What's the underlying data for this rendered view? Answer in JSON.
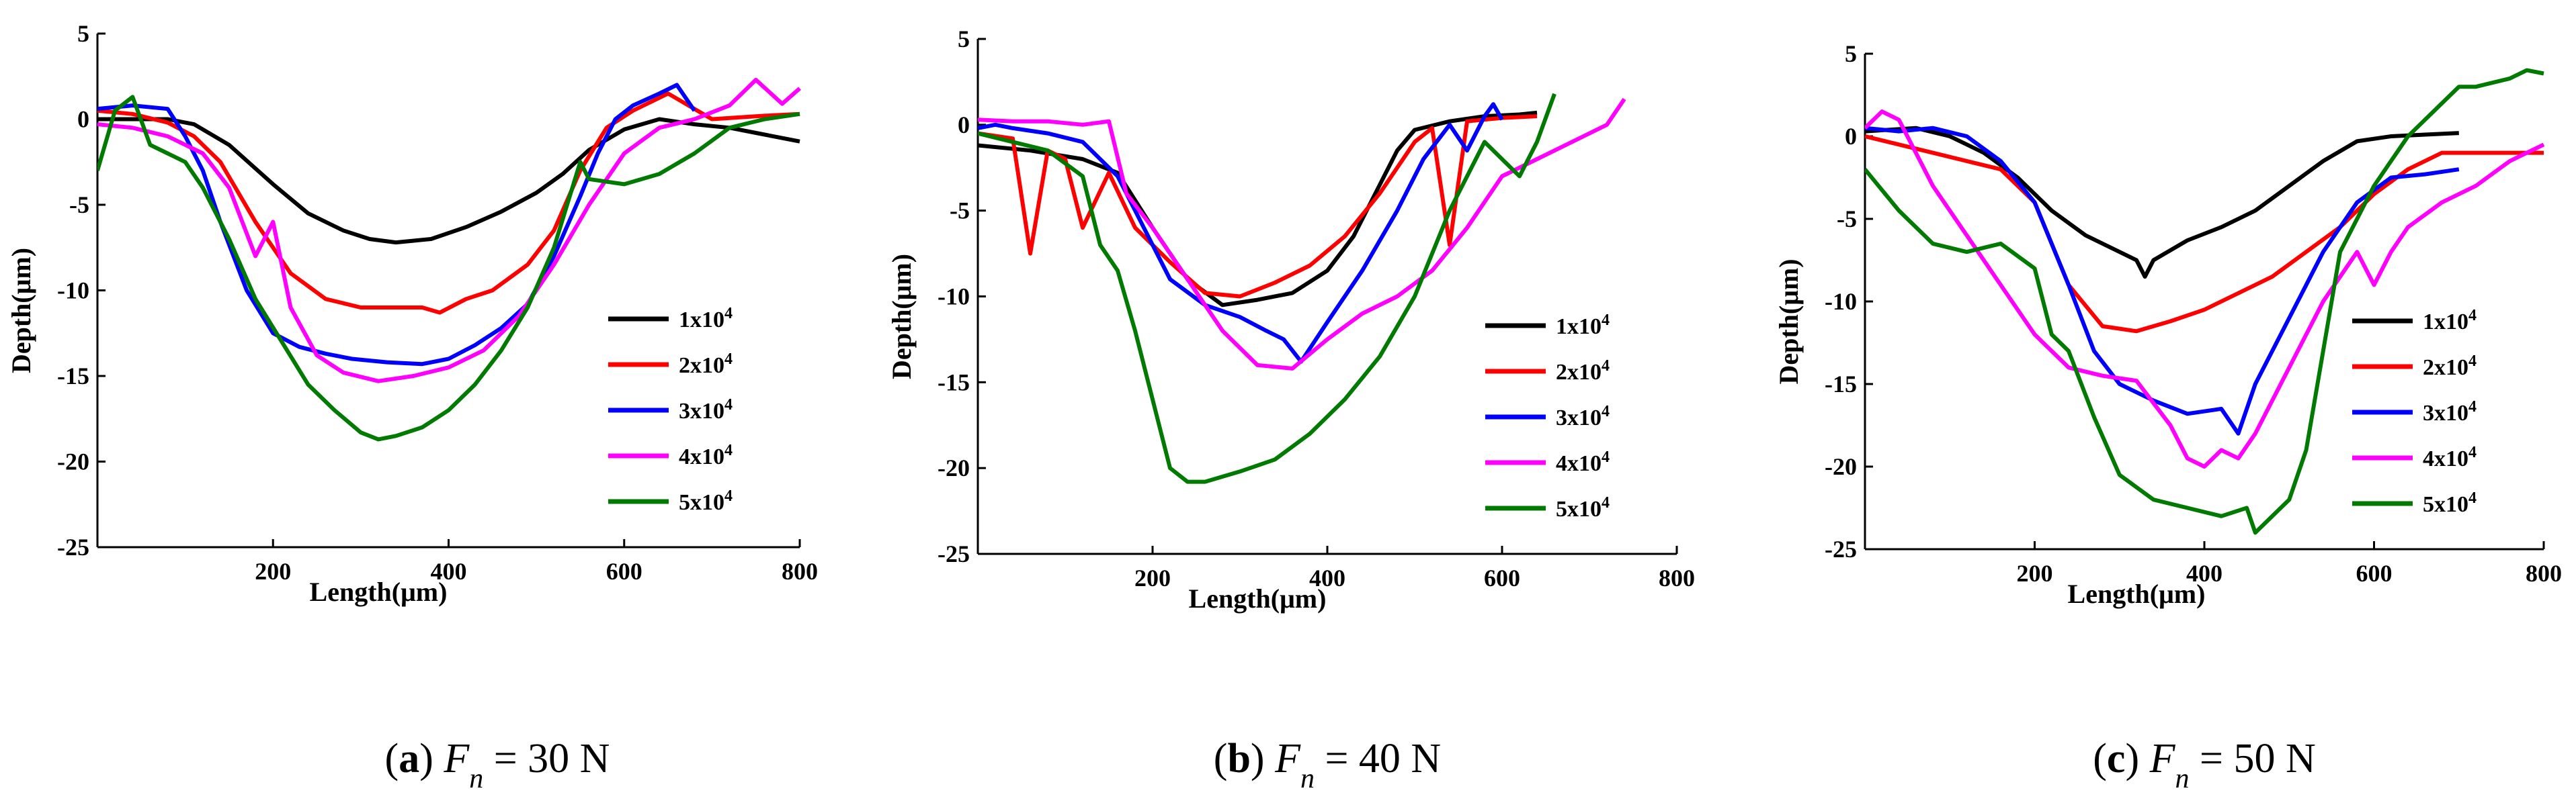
{
  "colors": {
    "1x10^4": "#000000",
    "2x10^4": "#ff0000",
    "3x10^4": "#0000ff",
    "4x10^4": "#ff00ff",
    "5x10^4": "#007a00"
  },
  "legend_entries": [
    "1x10^4",
    "2x10^4",
    "3x10^4",
    "4x10^4",
    "5x10^4"
  ],
  "chart_data": [
    {
      "type": "line",
      "caption": {
        "letter": "a",
        "force_symbol": "F",
        "force_sub": "n",
        "value": "= 30 N"
      },
      "xlabel": "Length(μm)",
      "ylabel": "Depth(μm)",
      "xlim": [
        0,
        800
      ],
      "ylim": [
        -25,
        5
      ],
      "xticks": [
        200,
        400,
        600,
        800
      ],
      "yticks": [
        5,
        0,
        -5,
        -10,
        -15,
        -20,
        -25
      ],
      "legend": "right",
      "grid": false,
      "series": [
        {
          "name": "1x10^4",
          "x": [
            0,
            80,
            110,
            150,
            200,
            240,
            280,
            310,
            340,
            380,
            420,
            460,
            500,
            530,
            560,
            600,
            640,
            680,
            720,
            760,
            800
          ],
          "y": [
            0,
            0,
            -0.3,
            -1.5,
            -3.8,
            -5.5,
            -6.5,
            -7,
            -7.2,
            -7,
            -6.3,
            -5.4,
            -4.3,
            -3.2,
            -1.8,
            -0.6,
            0,
            -0.3,
            -0.5,
            -0.9,
            -1.3
          ]
        },
        {
          "name": "2x10^4",
          "x": [
            0,
            40,
            80,
            110,
            140,
            180,
            220,
            260,
            300,
            340,
            370,
            390,
            420,
            450,
            490,
            520,
            550,
            580,
            610,
            650,
            700,
            760,
            800
          ],
          "y": [
            0.5,
            0.3,
            -0.2,
            -1,
            -2.5,
            -6,
            -9,
            -10.5,
            -11,
            -11,
            -11,
            -11.3,
            -10.5,
            -10,
            -8.5,
            -6.5,
            -3,
            -0.5,
            0.5,
            1.5,
            0,
            0.2,
            0.3
          ]
        },
        {
          "name": "3x10^4",
          "x": [
            0,
            40,
            80,
            100,
            120,
            140,
            170,
            200,
            230,
            260,
            290,
            330,
            370,
            400,
            430,
            460,
            490,
            520,
            550,
            570,
            590,
            610,
            640,
            660,
            680
          ],
          "y": [
            0.6,
            0.8,
            0.6,
            -1,
            -3,
            -6,
            -10,
            -12.5,
            -13.3,
            -13.7,
            -14,
            -14.2,
            -14.3,
            -14,
            -13.2,
            -12.2,
            -10.8,
            -8,
            -4.5,
            -2,
            0,
            0.8,
            1.5,
            2,
            0.5
          ]
        },
        {
          "name": "4x10^4",
          "x": [
            0,
            40,
            80,
            120,
            150,
            180,
            200,
            220,
            250,
            280,
            320,
            360,
            400,
            440,
            480,
            520,
            560,
            600,
            640,
            680,
            720,
            750,
            780,
            800
          ],
          "y": [
            -0.3,
            -0.5,
            -1,
            -2,
            -4,
            -8,
            -6,
            -11,
            -13.8,
            -14.8,
            -15.3,
            -15,
            -14.5,
            -13.5,
            -11.5,
            -8.5,
            -5,
            -2,
            -0.5,
            0,
            0.8,
            2.3,
            0.9,
            1.8
          ]
        },
        {
          "name": "5x10^4",
          "x": [
            0,
            20,
            40,
            60,
            80,
            100,
            120,
            150,
            180,
            210,
            240,
            270,
            300,
            320,
            340,
            370,
            400,
            430,
            460,
            490,
            520,
            550,
            560,
            600,
            640,
            680,
            720,
            760,
            800
          ],
          "y": [
            -3,
            0.5,
            1.3,
            -1.5,
            -2,
            -2.5,
            -4,
            -7,
            -10.5,
            -13,
            -15.5,
            -17,
            -18.3,
            -18.7,
            -18.5,
            -18,
            -17,
            -15.5,
            -13.5,
            -11,
            -7.5,
            -2.5,
            -3.5,
            -3.8,
            -3.2,
            -2,
            -0.5,
            0,
            0.3
          ]
        }
      ]
    },
    {
      "type": "line",
      "caption": {
        "letter": "b",
        "force_symbol": "F",
        "force_sub": "n",
        "value": "= 40 N"
      },
      "xlabel": "Length(μm)",
      "ylabel": "Depth(μm)",
      "xlim": [
        0,
        800
      ],
      "ylim": [
        -25,
        5
      ],
      "xticks": [
        200,
        400,
        600,
        800
      ],
      "yticks": [
        5,
        0,
        -5,
        -10,
        -15,
        -20,
        -25
      ],
      "legend": "right",
      "grid": false,
      "series": [
        {
          "name": "1x10^4",
          "x": [
            0,
            60,
            120,
            160,
            200,
            240,
            280,
            320,
            360,
            400,
            430,
            460,
            480,
            500,
            540,
            580,
            620,
            640
          ],
          "y": [
            -1.2,
            -1.5,
            -2,
            -2.8,
            -6,
            -9,
            -10.5,
            -10.2,
            -9.8,
            -8.5,
            -6.5,
            -3.5,
            -1.5,
            -0.3,
            0.2,
            0.5,
            0.6,
            0.7
          ]
        },
        {
          "name": "2x10^4",
          "x": [
            0,
            40,
            60,
            80,
            100,
            120,
            150,
            180,
            220,
            260,
            300,
            340,
            380,
            420,
            460,
            500,
            520,
            540,
            560,
            600,
            640
          ],
          "y": [
            -0.5,
            -0.8,
            -7.5,
            -1.5,
            -2,
            -6,
            -2.8,
            -6,
            -8,
            -9.8,
            -10,
            -9.2,
            -8.2,
            -6.5,
            -4,
            -1,
            -0.2,
            -7,
            0.2,
            0.4,
            0.5
          ]
        },
        {
          "name": "3x10^4",
          "x": [
            0,
            20,
            40,
            80,
            120,
            160,
            190,
            220,
            260,
            300,
            330,
            350,
            370,
            400,
            440,
            480,
            510,
            540,
            560,
            580,
            590,
            600
          ],
          "y": [
            -0.2,
            0,
            -0.2,
            -0.5,
            -1,
            -3,
            -6,
            -9,
            -10.5,
            -11.2,
            -12,
            -12.5,
            -13.8,
            -11.5,
            -8.5,
            -5,
            -2,
            0,
            -1.5,
            0.5,
            1.2,
            0.3
          ]
        },
        {
          "name": "4x10^4",
          "x": [
            0,
            40,
            80,
            120,
            150,
            170,
            200,
            240,
            280,
            320,
            360,
            400,
            440,
            480,
            520,
            560,
            600,
            640,
            680,
            720,
            740
          ],
          "y": [
            0.3,
            0.2,
            0.2,
            0,
            0.2,
            -4,
            -6,
            -9,
            -12,
            -14,
            -14.2,
            -12.5,
            -11,
            -10,
            -8.5,
            -6,
            -3,
            -2,
            -1,
            0,
            1.5
          ]
        },
        {
          "name": "5x10^4",
          "x": [
            0,
            40,
            80,
            120,
            140,
            160,
            180,
            200,
            220,
            240,
            260,
            300,
            340,
            380,
            420,
            460,
            500,
            540,
            560,
            580,
            600,
            620,
            640,
            660
          ],
          "y": [
            -0.5,
            -1,
            -1.5,
            -3,
            -7,
            -8.5,
            -12,
            -16,
            -20,
            -20.8,
            -20.8,
            -20.2,
            -19.5,
            -18,
            -16,
            -13.5,
            -10,
            -5,
            -3,
            -1,
            -2,
            -3,
            -1,
            1.8
          ]
        }
      ]
    },
    {
      "type": "line",
      "caption": {
        "letter": "c",
        "force_symbol": "F",
        "force_sub": "n",
        "value": "= 50 N"
      },
      "xlabel": "Length(μm)",
      "ylabel": "Depth(μm)",
      "xlim": [
        0,
        800
      ],
      "ylim": [
        -25,
        5
      ],
      "xticks": [
        200,
        400,
        600,
        800
      ],
      "yticks": [
        5,
        0,
        -5,
        -10,
        -15,
        -20,
        -25
      ],
      "legend": "right",
      "grid": false,
      "series": [
        {
          "name": "1x10^4",
          "x": [
            0,
            60,
            100,
            140,
            180,
            220,
            260,
            300,
            320,
            330,
            340,
            380,
            420,
            460,
            500,
            540,
            580,
            620,
            660,
            700
          ],
          "y": [
            0.3,
            0.5,
            0,
            -1,
            -2.5,
            -4.5,
            -6,
            -7,
            -7.5,
            -8.5,
            -7.5,
            -6.3,
            -5.5,
            -4.5,
            -3,
            -1.5,
            -0.3,
            0,
            0.1,
            0.2
          ]
        },
        {
          "name": "2x10^4",
          "x": [
            0,
            40,
            80,
            120,
            160,
            200,
            240,
            280,
            320,
            360,
            400,
            440,
            480,
            520,
            560,
            600,
            640,
            680,
            720,
            760,
            800
          ],
          "y": [
            0,
            -0.5,
            -1,
            -1.5,
            -2,
            -4,
            -9,
            -11.5,
            -11.8,
            -11.2,
            -10.5,
            -9.5,
            -8.5,
            -7,
            -5.5,
            -3.5,
            -2,
            -1,
            -1,
            -1,
            -1
          ]
        },
        {
          "name": "3x10^4",
          "x": [
            0,
            40,
            80,
            120,
            160,
            200,
            240,
            270,
            300,
            340,
            380,
            420,
            440,
            460,
            500,
            540,
            580,
            620,
            660,
            700
          ],
          "y": [
            0.5,
            0.3,
            0.5,
            0,
            -1.5,
            -4,
            -9,
            -13,
            -15,
            -16,
            -16.8,
            -16.5,
            -18,
            -15,
            -11,
            -7,
            -4,
            -2.5,
            -2.3,
            -2
          ]
        },
        {
          "name": "4x10^4",
          "x": [
            0,
            20,
            40,
            60,
            80,
            120,
            160,
            200,
            240,
            280,
            320,
            360,
            380,
            400,
            420,
            440,
            460,
            500,
            540,
            580,
            600,
            620,
            640,
            680,
            720,
            760,
            800
          ],
          "y": [
            0.5,
            1.5,
            1,
            -1,
            -3,
            -6,
            -9,
            -12,
            -14,
            -14.5,
            -14.8,
            -17.5,
            -19.5,
            -20,
            -19,
            -19.5,
            -18,
            -14,
            -10,
            -7,
            -9,
            -7,
            -5.5,
            -4,
            -3,
            -1.5,
            -0.5
          ]
        },
        {
          "name": "5x10^4",
          "x": [
            0,
            40,
            80,
            120,
            160,
            200,
            220,
            240,
            270,
            300,
            340,
            380,
            420,
            450,
            460,
            480,
            500,
            520,
            540,
            560,
            600,
            640,
            680,
            700,
            720,
            760,
            780,
            800
          ],
          "y": [
            -2,
            -4.5,
            -6.5,
            -7,
            -6.5,
            -8,
            -12,
            -13,
            -17,
            -20.5,
            -22,
            -22.5,
            -23,
            -22.5,
            -24,
            -23,
            -22,
            -19,
            -13,
            -7,
            -3,
            0,
            2,
            3,
            3,
            3.5,
            4,
            3.8
          ]
        }
      ]
    }
  ]
}
